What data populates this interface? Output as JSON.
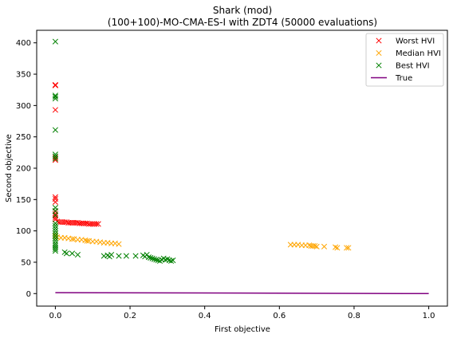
{
  "chart_data": {
    "type": "scatter",
    "title": "Shark (mod)",
    "subtitle": "(100+100)-MO-CMA-ES-I with ZDT4 (50000 evaluations)",
    "xlabel": "First objective",
    "ylabel": "Second objective",
    "xlim": [
      -0.05,
      1.05
    ],
    "ylim": [
      -20,
      420
    ],
    "xticks": [
      "0.0",
      "0.2",
      "0.4",
      "0.6",
      "0.8",
      "1.0"
    ],
    "xtick_values": [
      0,
      0.2,
      0.4,
      0.6,
      0.8,
      1.0
    ],
    "yticks": [
      "0",
      "50",
      "100",
      "150",
      "200",
      "250",
      "300",
      "350",
      "400"
    ],
    "ytick_values": [
      0,
      50,
      100,
      150,
      200,
      250,
      300,
      350,
      400
    ],
    "grid": false,
    "legend": "top-right",
    "series": [
      {
        "name": "Worst HVI",
        "color": "#ff0000",
        "marker": "x",
        "points": [
          [
            0.0,
            333
          ],
          [
            0.0,
            332
          ],
          [
            0.0,
            293
          ],
          [
            0.0,
            217
          ],
          [
            0.0,
            213
          ],
          [
            0.0,
            154
          ],
          [
            0.0,
            151
          ],
          [
            0.0,
            146
          ],
          [
            0.0,
            131
          ],
          [
            0.0,
            127
          ],
          [
            0.0,
            124
          ],
          [
            0.0,
            121
          ],
          [
            0.0,
            118
          ],
          [
            0.005,
            115
          ],
          [
            0.01,
            114
          ],
          [
            0.015,
            114
          ],
          [
            0.02,
            114
          ],
          [
            0.025,
            114
          ],
          [
            0.03,
            114
          ],
          [
            0.035,
            113
          ],
          [
            0.04,
            113
          ],
          [
            0.045,
            113
          ],
          [
            0.05,
            113
          ],
          [
            0.055,
            113
          ],
          [
            0.06,
            113
          ],
          [
            0.065,
            112
          ],
          [
            0.07,
            112
          ],
          [
            0.075,
            112
          ],
          [
            0.08,
            112
          ],
          [
            0.085,
            112
          ],
          [
            0.09,
            111
          ],
          [
            0.095,
            111
          ],
          [
            0.1,
            111
          ],
          [
            0.105,
            111
          ],
          [
            0.11,
            111
          ],
          [
            0.115,
            111
          ]
        ]
      },
      {
        "name": "Median HVI",
        "color": "#ffa500",
        "marker": "x",
        "points": [
          [
            0.0,
            96
          ],
          [
            0.0,
            93
          ],
          [
            0.0,
            91
          ],
          [
            0.005,
            90
          ],
          [
            0.015,
            89
          ],
          [
            0.025,
            89
          ],
          [
            0.035,
            88
          ],
          [
            0.045,
            87
          ],
          [
            0.05,
            87
          ],
          [
            0.06,
            86
          ],
          [
            0.07,
            86
          ],
          [
            0.08,
            85
          ],
          [
            0.085,
            84
          ],
          [
            0.09,
            84
          ],
          [
            0.1,
            83
          ],
          [
            0.11,
            83
          ],
          [
            0.12,
            82
          ],
          [
            0.13,
            81
          ],
          [
            0.14,
            81
          ],
          [
            0.15,
            80
          ],
          [
            0.16,
            80
          ],
          [
            0.17,
            79
          ],
          [
            0.63,
            78
          ],
          [
            0.64,
            78
          ],
          [
            0.65,
            78
          ],
          [
            0.66,
            77
          ],
          [
            0.67,
            77
          ],
          [
            0.68,
            77
          ],
          [
            0.685,
            76
          ],
          [
            0.69,
            76
          ],
          [
            0.695,
            76
          ],
          [
            0.7,
            75
          ],
          [
            0.72,
            75
          ],
          [
            0.75,
            74
          ],
          [
            0.755,
            73
          ],
          [
            0.78,
            73
          ],
          [
            0.785,
            73
          ]
        ]
      },
      {
        "name": "Best HVI",
        "color": "#008000",
        "marker": "x",
        "points": [
          [
            0.0,
            402
          ],
          [
            0.0,
            316
          ],
          [
            0.0,
            314
          ],
          [
            0.0,
            311
          ],
          [
            0.0,
            261
          ],
          [
            0.0,
            222
          ],
          [
            0.0,
            219
          ],
          [
            0.0,
            215
          ],
          [
            0.0,
            137
          ],
          [
            0.0,
            132
          ],
          [
            0.0,
            125
          ],
          [
            0.0,
            112
          ],
          [
            0.0,
            108
          ],
          [
            0.0,
            104
          ],
          [
            0.0,
            100
          ],
          [
            0.0,
            96
          ],
          [
            0.0,
            92
          ],
          [
            0.0,
            88
          ],
          [
            0.0,
            84
          ],
          [
            0.0,
            80
          ],
          [
            0.0,
            77
          ],
          [
            0.0,
            74
          ],
          [
            0.0,
            71
          ],
          [
            0.0,
            68
          ],
          [
            0.025,
            66
          ],
          [
            0.03,
            64
          ],
          [
            0.045,
            64
          ],
          [
            0.06,
            62
          ],
          [
            0.13,
            60
          ],
          [
            0.14,
            61
          ],
          [
            0.145,
            59
          ],
          [
            0.15,
            62
          ],
          [
            0.17,
            60
          ],
          [
            0.19,
            60
          ],
          [
            0.215,
            60
          ],
          [
            0.235,
            61
          ],
          [
            0.24,
            59
          ],
          [
            0.245,
            62
          ],
          [
            0.25,
            58
          ],
          [
            0.255,
            57
          ],
          [
            0.26,
            56
          ],
          [
            0.265,
            55
          ],
          [
            0.27,
            54
          ],
          [
            0.275,
            53
          ],
          [
            0.28,
            52
          ],
          [
            0.285,
            54
          ],
          [
            0.29,
            56
          ],
          [
            0.295,
            54
          ],
          [
            0.3,
            55
          ],
          [
            0.305,
            53
          ],
          [
            0.31,
            52
          ],
          [
            0.315,
            53
          ]
        ]
      },
      {
        "name": "True",
        "color": "#800080",
        "marker": "line",
        "points": [
          [
            0.0,
            1.5
          ],
          [
            0.5,
            0.8
          ],
          [
            1.0,
            0.0
          ]
        ]
      }
    ]
  }
}
